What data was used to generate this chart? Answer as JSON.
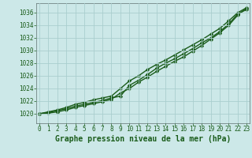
{
  "xlabel": "Graphe pression niveau de la mer (hPa)",
  "x": [
    0,
    1,
    2,
    3,
    4,
    5,
    6,
    7,
    8,
    9,
    10,
    11,
    12,
    13,
    14,
    15,
    16,
    17,
    18,
    19,
    20,
    21,
    22,
    23
  ],
  "line1": [
    1020.0,
    1020.2,
    1020.5,
    1020.8,
    1021.2,
    1021.5,
    1021.8,
    1022.1,
    1022.5,
    1022.8,
    1024.5,
    1025.3,
    1026.2,
    1027.2,
    1028.0,
    1028.7,
    1029.5,
    1030.3,
    1031.2,
    1032.0,
    1033.0,
    1034.2,
    1035.8,
    1036.5
  ],
  "line2": [
    1020.0,
    1020.3,
    1020.6,
    1021.0,
    1021.5,
    1021.8,
    1022.2,
    1022.5,
    1022.8,
    1024.0,
    1025.2,
    1026.0,
    1027.0,
    1027.8,
    1028.5,
    1029.3,
    1030.1,
    1030.9,
    1031.7,
    1032.6,
    1033.5,
    1034.7,
    1036.0,
    1036.8
  ],
  "line3": [
    1020.0,
    1020.1,
    1020.3,
    1020.6,
    1021.0,
    1021.3,
    1021.6,
    1021.9,
    1022.3,
    1023.3,
    1024.0,
    1025.0,
    1025.8,
    1026.7,
    1027.5,
    1028.3,
    1029.0,
    1029.9,
    1030.8,
    1031.8,
    1032.8,
    1034.0,
    1035.6,
    1036.8
  ],
  "ylim_min": 1018.5,
  "ylim_max": 1037.5,
  "yticks": [
    1020,
    1022,
    1024,
    1026,
    1028,
    1030,
    1032,
    1034,
    1036
  ],
  "bg_color": "#cce8e8",
  "grid_color": "#aacece",
  "line_color": "#1a5c1a",
  "marker": "D",
  "marker_size": 2.2,
  "line_width": 1.0,
  "tick_label_fontsize": 5.5,
  "xlabel_fontsize": 7.0
}
